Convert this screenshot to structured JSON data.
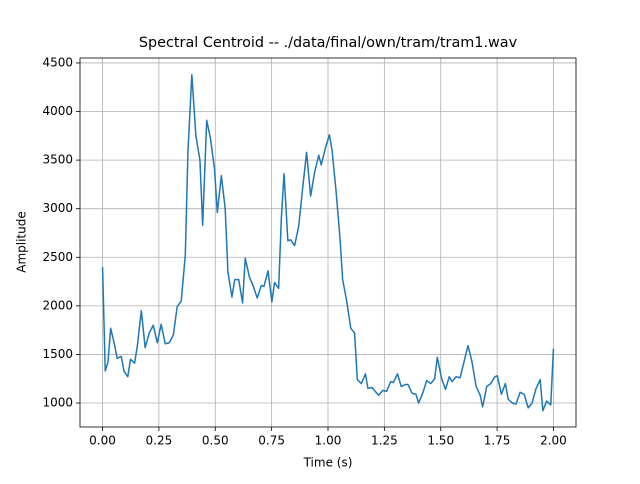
{
  "chart_data": {
    "type": "line",
    "title": "Spectral Centroid -- ./data/final/own/tram/tram1.wav",
    "xlabel": "Time (s)",
    "ylabel": "Amplitude",
    "grid": true,
    "xlim": [
      -0.1,
      2.1
    ],
    "ylim": [
      753,
      4551
    ],
    "xticks": [
      {
        "value": 0,
        "label": "0.00"
      },
      {
        "value": 0.25,
        "label": "0.25"
      },
      {
        "value": 0.5,
        "label": "0.50"
      },
      {
        "value": 0.75,
        "label": "0.75"
      },
      {
        "value": 1,
        "label": "1.00"
      },
      {
        "value": 1.25,
        "label": "1.25"
      },
      {
        "value": 1.5,
        "label": "1.50"
      },
      {
        "value": 1.75,
        "label": "1.75"
      },
      {
        "value": 2,
        "label": "2.00"
      }
    ],
    "yticks": [
      1000,
      1500,
      2000,
      2500,
      3000,
      3500,
      4000,
      4500
    ],
    "x": [
      0,
      0.012,
      0.024,
      0.036,
      0.053,
      0.065,
      0.083,
      0.095,
      0.112,
      0.124,
      0.142,
      0.154,
      0.172,
      0.189,
      0.207,
      0.225,
      0.243,
      0.26,
      0.278,
      0.296,
      0.314,
      0.331,
      0.349,
      0.367,
      0.379,
      0.396,
      0.414,
      0.432,
      0.444,
      0.462,
      0.479,
      0.497,
      0.509,
      0.527,
      0.544,
      0.556,
      0.574,
      0.586,
      0.604,
      0.621,
      0.633,
      0.651,
      0.669,
      0.686,
      0.704,
      0.716,
      0.734,
      0.751,
      0.763,
      0.781,
      0.793,
      0.805,
      0.822,
      0.834,
      0.852,
      0.87,
      0.888,
      0.905,
      0.923,
      0.941,
      0.959,
      0.97,
      0.988,
      1.006,
      1.018,
      1.035,
      1.053,
      1.065,
      1.083,
      1.101,
      1.118,
      1.13,
      1.148,
      1.166,
      1.177,
      1.195,
      1.213,
      1.225,
      1.243,
      1.26,
      1.278,
      1.29,
      1.308,
      1.325,
      1.343,
      1.355,
      1.373,
      1.39,
      1.402,
      1.42,
      1.438,
      1.456,
      1.473,
      1.485,
      1.503,
      1.521,
      1.538,
      1.55,
      1.568,
      1.586,
      1.604,
      1.621,
      1.639,
      1.657,
      1.675,
      1.686,
      1.704,
      1.722,
      1.74,
      1.751,
      1.769,
      1.787,
      1.799,
      1.817,
      1.834,
      1.852,
      1.87,
      1.888,
      1.905,
      1.923,
      1.941,
      1.953,
      1.97,
      1.988,
      2.0
    ],
    "series": [
      {
        "color": "#1f77b4",
        "values": [
          2400,
          1330,
          1420,
          1770,
          1600,
          1460,
          1480,
          1330,
          1270,
          1450,
          1410,
          1580,
          1950,
          1570,
          1720,
          1800,
          1620,
          1810,
          1610,
          1620,
          1700,
          1990,
          2050,
          2520,
          3600,
          4380,
          3750,
          3500,
          2830,
          3910,
          3720,
          3400,
          2960,
          3340,
          3000,
          2350,
          2090,
          2270,
          2270,
          2030,
          2490,
          2300,
          2200,
          2080,
          2210,
          2200,
          2360,
          2040,
          2240,
          2180,
          2900,
          3360,
          2670,
          2680,
          2620,
          2820,
          3220,
          3580,
          3130,
          3380,
          3550,
          3450,
          3620,
          3760,
          3600,
          3200,
          2700,
          2270,
          2050,
          1770,
          1720,
          1240,
          1200,
          1300,
          1150,
          1160,
          1110,
          1080,
          1130,
          1120,
          1220,
          1210,
          1300,
          1170,
          1190,
          1190,
          1100,
          1090,
          1000,
          1100,
          1230,
          1200,
          1250,
          1470,
          1260,
          1140,
          1270,
          1220,
          1270,
          1260,
          1430,
          1590,
          1420,
          1170,
          1080,
          960,
          1170,
          1200,
          1270,
          1280,
          1090,
          1200,
          1040,
          1000,
          990,
          1110,
          1090,
          950,
          1000,
          1150,
          1240,
          920,
          1020,
          980,
          1560
        ]
      }
    ]
  }
}
